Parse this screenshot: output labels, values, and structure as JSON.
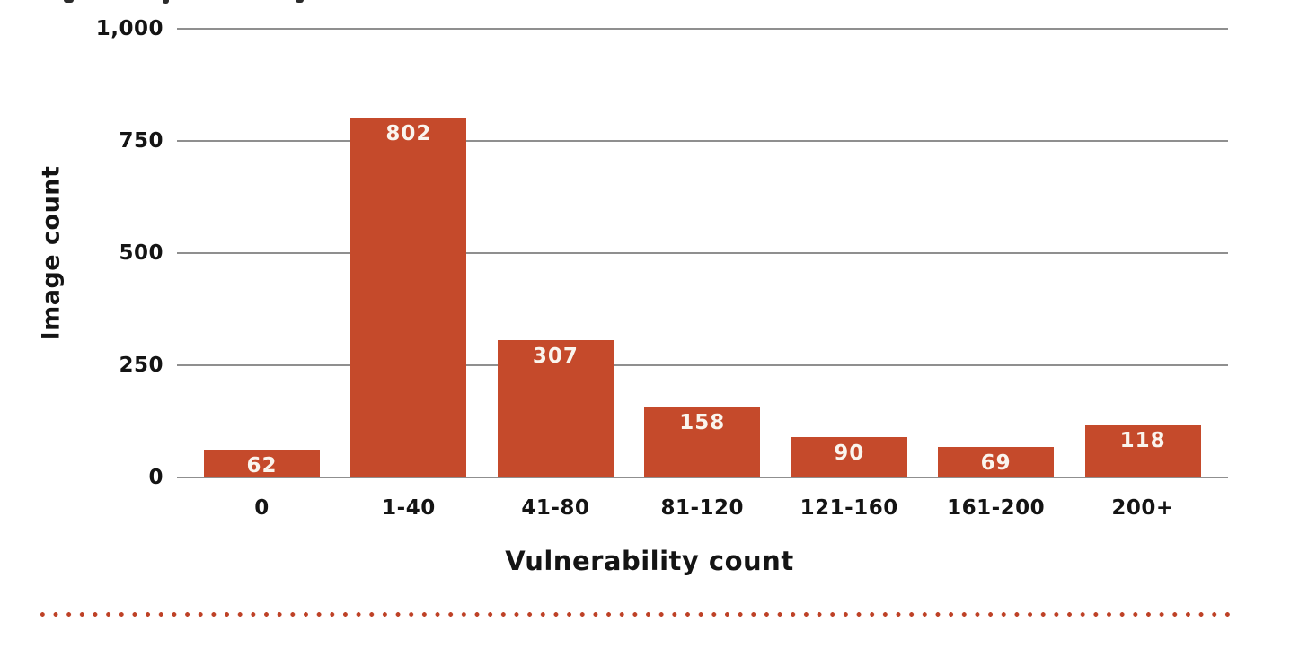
{
  "chart_data": {
    "type": "bar",
    "categories": [
      "0",
      "1-40",
      "41-80",
      "81-120",
      "121-160",
      "161-200",
      "200+"
    ],
    "values": [
      62,
      802,
      307,
      158,
      90,
      69,
      118
    ],
    "xlabel": "Vulnerability count",
    "ylabel": "Image count",
    "ylim": [
      0,
      1000
    ],
    "yticks": [
      "0",
      "250",
      "500",
      "750",
      "1,000"
    ],
    "grid": true,
    "legend_position": "none",
    "value_labels_shown": true,
    "colors": {
      "bar": "#C54A2B",
      "bar_value_label": "#FAF5EE",
      "gridline": "#8F8F8F",
      "axis_text": "#141414",
      "dotted_divider": "#BE4126"
    }
  }
}
